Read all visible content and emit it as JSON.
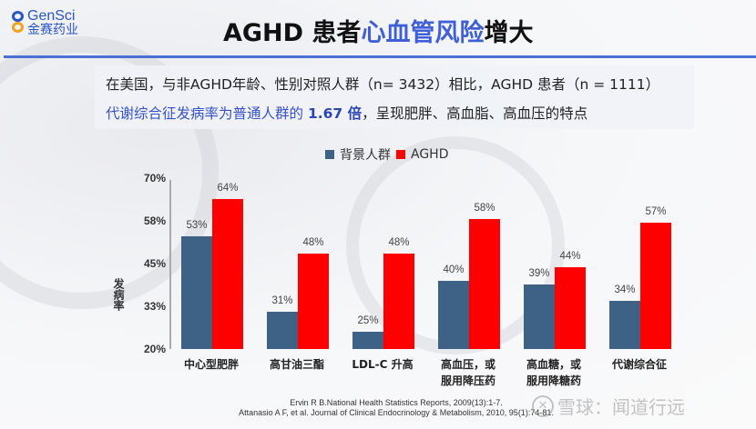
{
  "logo": {
    "en": "GenSci",
    "cn": "金赛药业"
  },
  "header": {
    "title_prefix": "AGHD 患者",
    "title_highlight": "心血管风险",
    "title_suffix": "增大"
  },
  "subtitle": {
    "line1": "在美国，与非AGHD年龄、性别对照人群（n= 3432）相比，AGHD 患者（n = 1111）",
    "line2_prefix": "代谢综合征发病率为普通人群的 ",
    "line2_bold": "1.67 倍",
    "line2_suffix": "，呈现肥胖、高血脂、高血压的特点"
  },
  "colors": {
    "background_group": "#3d6285",
    "aghd": "#ff0000",
    "accent": "#3f5fd8"
  },
  "chart_data": {
    "type": "bar",
    "title": "",
    "xlabel": "",
    "ylabel": "发病率",
    "ylim": [
      20,
      70
    ],
    "yticks": [
      "70%",
      "58%",
      "45%",
      "33%",
      "20%"
    ],
    "legend_position": "top",
    "grid": false,
    "categories": [
      "中心型肥胖",
      "高甘油三酯",
      "LDL-C 升高",
      "高血压，或\n服用降压药",
      "高血糖，或\n服用降糖药",
      "代谢综合征"
    ],
    "series": [
      {
        "name": "背景人群",
        "color": "#3d6285",
        "values": [
          53,
          31,
          25,
          40,
          39,
          34
        ]
      },
      {
        "name": "AGHD",
        "color": "#ff0000",
        "values": [
          64,
          48,
          48,
          58,
          44,
          57
        ]
      }
    ]
  },
  "chart_labels": {
    "legend": [
      "背景人群",
      "AGHD"
    ],
    "ylabel": "发病率",
    "yticks": [
      "70%",
      "58%",
      "45%",
      "33%",
      "20%"
    ],
    "categories_line1": [
      "中心型肥胖",
      "高甘油三酯",
      "LDL-C 升高",
      "高血压，或",
      "高血糖，或",
      "代谢综合征"
    ],
    "categories_line2": [
      "",
      "",
      "",
      "服用降压药",
      "服用降糖药",
      ""
    ],
    "blue_labels": [
      "53%",
      "31%",
      "25%",
      "40%",
      "39%",
      "34%"
    ],
    "red_labels": [
      "64%",
      "48%",
      "48%",
      "58%",
      "44%",
      "57%"
    ]
  },
  "references": [
    "Ervin R B.National Health Statistics Reports, 2009(13):1-7.",
    "Attanasio A F, et al. Journal of Clinical Endocrinology & Metabolism, 2010, 95(1):74-81."
  ],
  "watermark": "雪球：闻道行远"
}
